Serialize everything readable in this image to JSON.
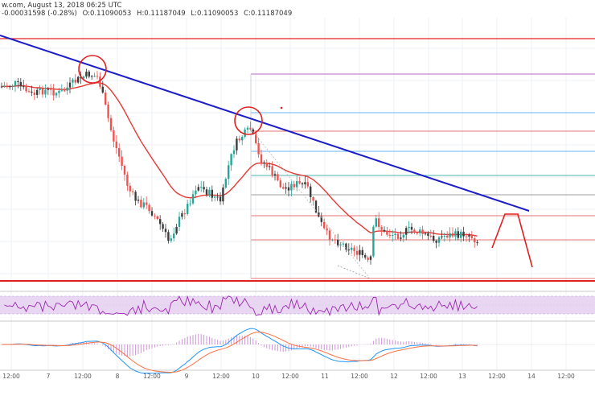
{
  "header": {
    "prefix": "w.com, August 13, 2018 06:25 UTC",
    "change": "-0.00031598 (-0.28%)",
    "open": "O:0.11090053",
    "high": "H:0.11187049",
    "low": "L:0.11090053",
    "close": "C:0.11187049"
  },
  "colors": {
    "up": "#26a69a",
    "down": "#ef5350",
    "candle_dark": "#3c3c3c",
    "trend": "#1c1cc8",
    "ma": "#e53935",
    "support": "#e02020",
    "fib_red": "#e57373",
    "fib_purple": "#ba68c8",
    "fib_blue": "#64b5f6",
    "fib_green": "#4db6ac",
    "rsi_band": "#e9d6f2",
    "rsi_line": "#9c27b0",
    "macd": "#2196f3",
    "signal": "#ff7043",
    "hist": "#ce93d8",
    "grid": "#eef0f3"
  },
  "chart_data": {
    "type": "candlestick",
    "x_ticks": [
      "12:00",
      "7",
      "12:00",
      "8",
      "12:00",
      "9",
      "12:00",
      "10",
      "12:00",
      "11",
      "12:00",
      "12",
      "12:00",
      "13",
      "12:00",
      "14",
      "12:00"
    ],
    "annotations": [
      "descending trendline",
      "two red circles on trendline touches",
      "horizontal support",
      "projected move arrows"
    ],
    "price_panel": {
      "grid": true
    },
    "rsi_panel": {
      "band": "30-70"
    },
    "macd_panel": {
      "series": [
        "macd",
        "signal",
        "histogram"
      ]
    }
  }
}
